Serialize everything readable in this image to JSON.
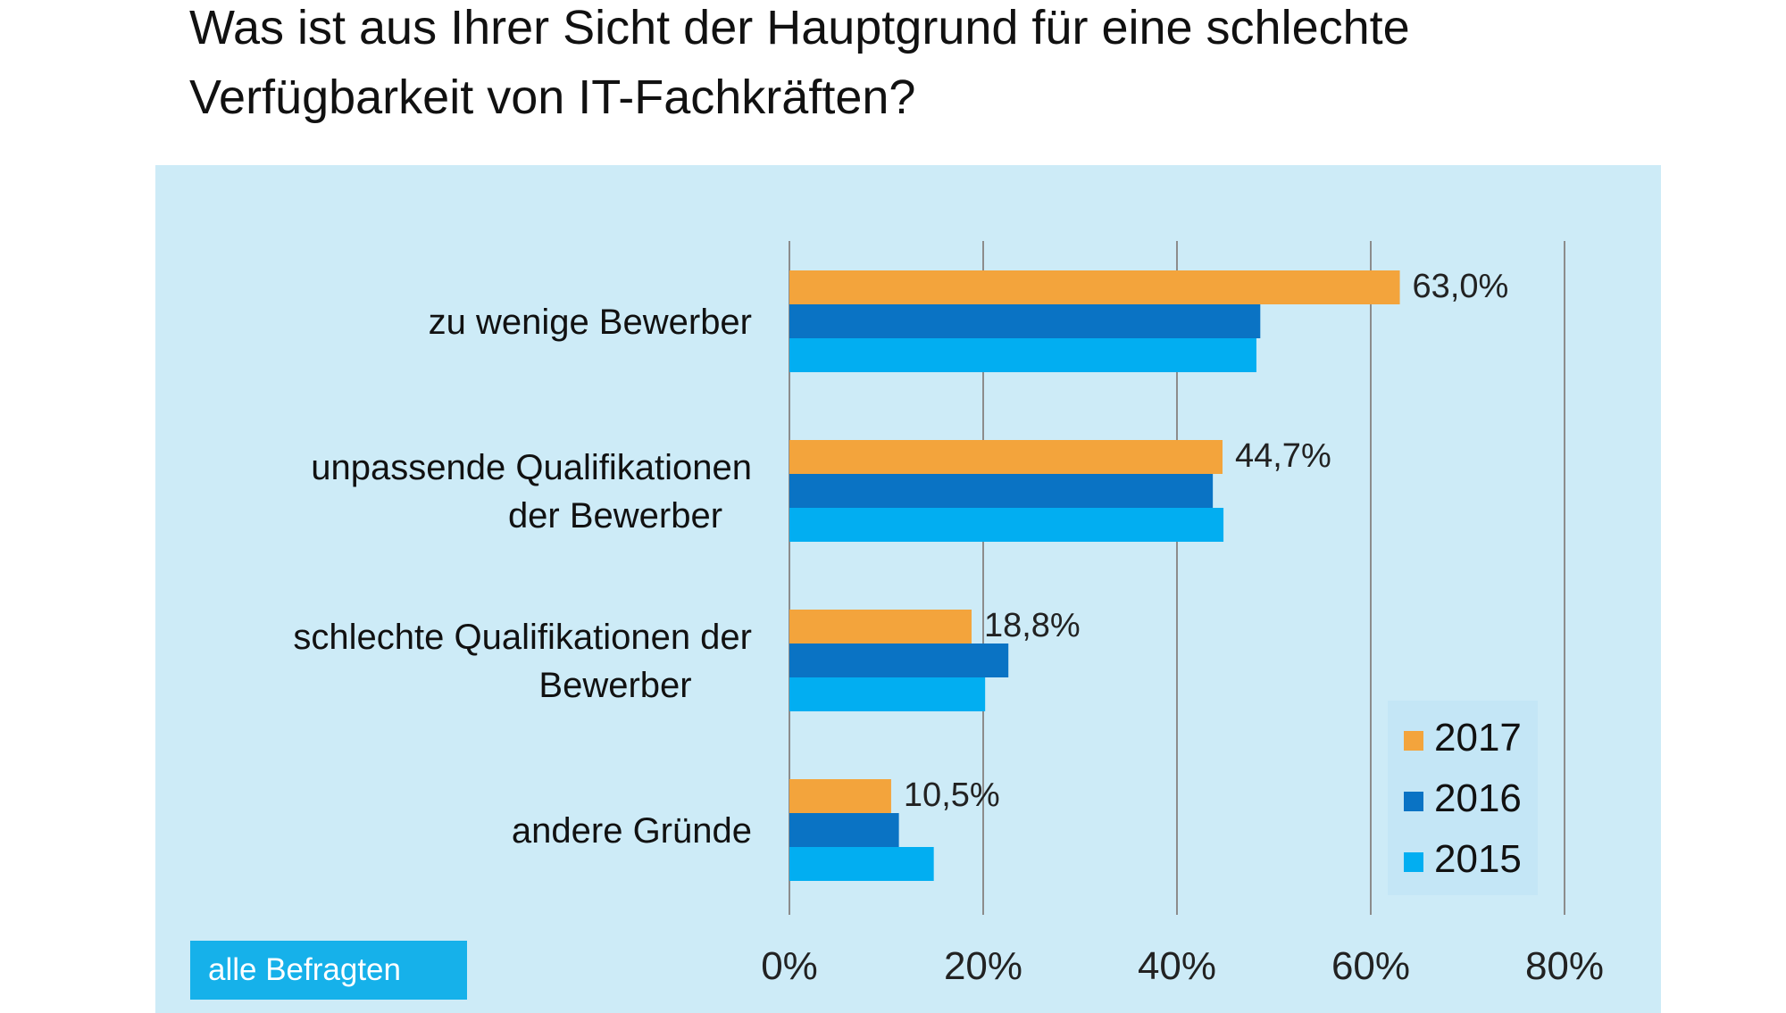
{
  "title": "Was ist aus Ihrer Sicht der Hauptgrund für eine schlechte\nVerfügbarkeit von IT-Fachkräften?",
  "badge": "alle Befragten",
  "chart_data": {
    "type": "bar",
    "orientation": "horizontal",
    "categories": [
      "zu wenige Bewerber",
      "unpassende Qualifikationen\nder Bewerber",
      "schlechte Qualifikationen der\nBewerber",
      "andere Gründe"
    ],
    "series": [
      {
        "name": "2017",
        "values": [
          63.0,
          44.7,
          18.8,
          10.5
        ],
        "color": "#f3a43c"
      },
      {
        "name": "2016",
        "values": [
          48.6,
          43.7,
          22.6,
          11.3
        ],
        "color": "#0a73c4"
      },
      {
        "name": "2015",
        "values": [
          48.2,
          44.8,
          20.2,
          14.9
        ],
        "color": "#02aef1"
      }
    ],
    "data_labels": [
      "63,0%",
      "44,7%",
      "18,8%",
      "10,5%"
    ],
    "xlim": [
      0,
      80
    ],
    "xticks": [
      0,
      20,
      40,
      60,
      80
    ],
    "xtick_labels": [
      "0%",
      "20%",
      "40%",
      "60%",
      "80%"
    ],
    "grid": true,
    "legend_position": "bottom-right",
    "legend_order": [
      "2017",
      "2016",
      "2015"
    ],
    "background": "#cdebf7",
    "grid_color": "#8c8c8c"
  }
}
